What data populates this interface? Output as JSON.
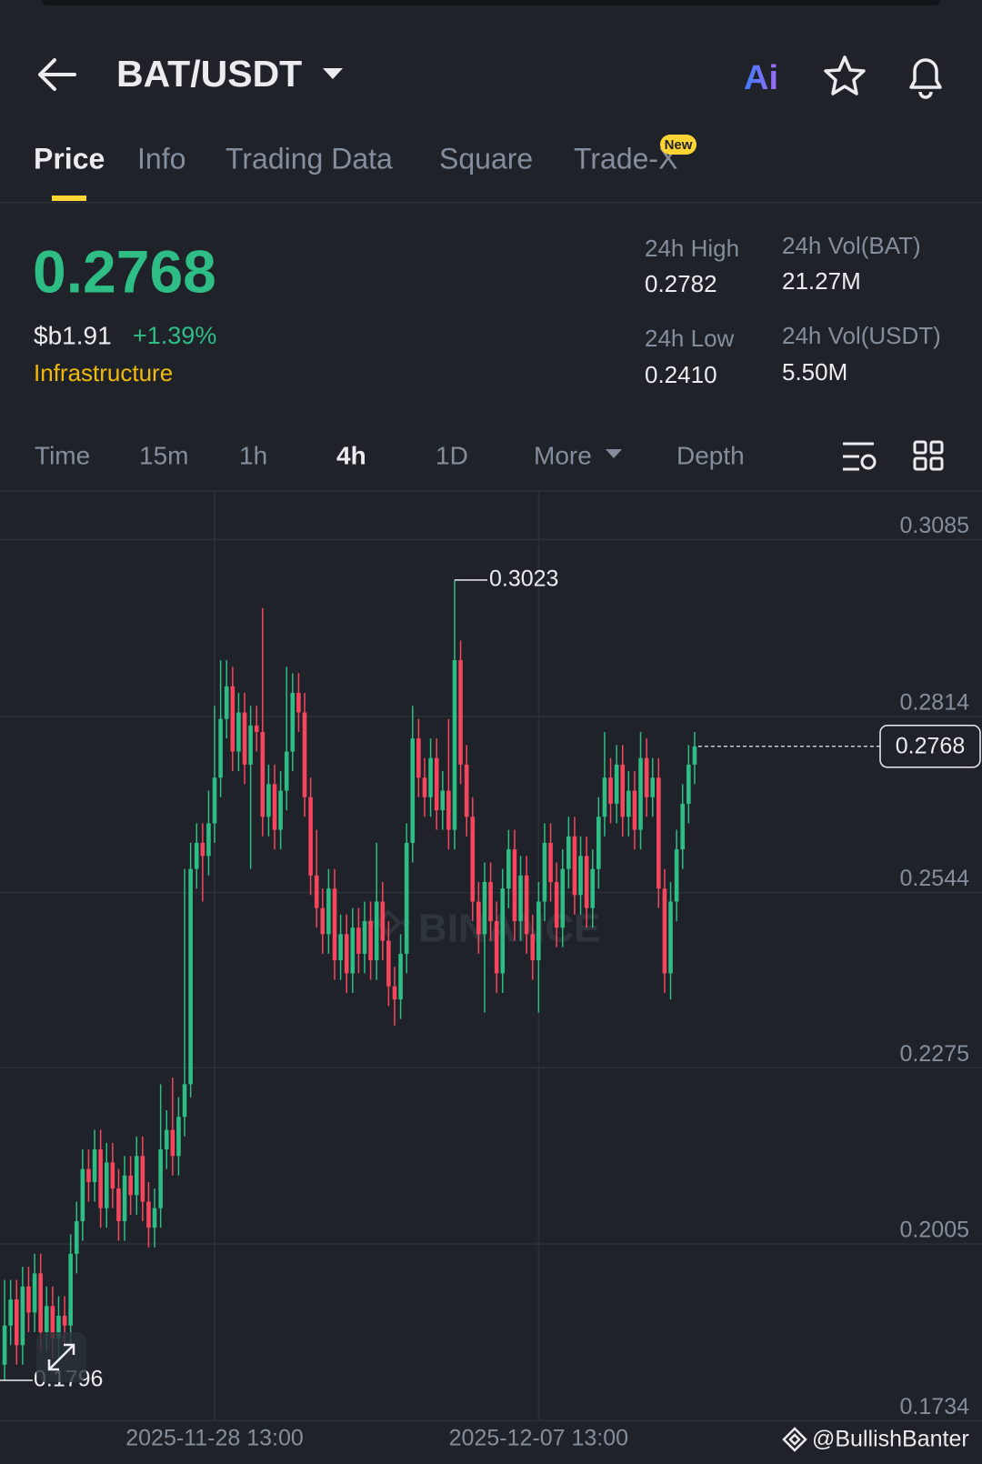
{
  "header": {
    "title": "BAT/USDT",
    "ai_label": "Ai"
  },
  "tabs": [
    "Price",
    "Info",
    "Trading Data",
    "Square",
    "Trade-X"
  ],
  "new_badge": "New",
  "ticker": {
    "price": "0.2768",
    "fiat": "$b1.91",
    "change": "+1.39%",
    "sector": "Infrastructure"
  },
  "stats": [
    {
      "label": "24h High",
      "value": "0.2782"
    },
    {
      "label": "24h Vol(BAT)",
      "value": "21.27M"
    },
    {
      "label": "24h Low",
      "value": "0.2410"
    },
    {
      "label": "24h Vol(USDT)",
      "value": "5.50M"
    }
  ],
  "intervals": [
    "Time",
    "15m",
    "1h",
    "4h",
    "1D",
    "More",
    "Depth"
  ],
  "watermark": "BINANCE",
  "credit": "@BullishBanter",
  "chart_data": {
    "type": "candlestick",
    "up_color": "#2ebd85",
    "down_color": "#f6465d",
    "ylim": [
      0.1734,
      0.3158
    ],
    "yticks": [
      0.3085,
      0.2814,
      0.2544,
      0.2275,
      0.2005,
      0.1734
    ],
    "xlim": [
      -0.77,
      162.9
    ],
    "xticks": [
      {
        "value": 35,
        "label": "2025-11-28 13:00"
      },
      {
        "value": 89,
        "label": "2025-12-07 13:00"
      }
    ],
    "high_label": 0.3023,
    "low_label": 0.1796,
    "last_price": 0.2768,
    "candles": [
      [
        0.182,
        0.195,
        0.1796,
        0.188
      ],
      [
        0.188,
        0.195,
        0.185,
        0.192
      ],
      [
        0.192,
        0.195,
        0.182,
        0.185
      ],
      [
        0.185,
        0.197,
        0.182,
        0.194
      ],
      [
        0.194,
        0.197,
        0.187,
        0.19
      ],
      [
        0.19,
        0.199,
        0.187,
        0.196
      ],
      [
        0.196,
        0.199,
        0.184,
        0.187
      ],
      [
        0.187,
        0.194,
        0.184,
        0.191
      ],
      [
        0.191,
        0.194,
        0.183,
        0.186
      ],
      [
        0.186,
        0.1925,
        0.183,
        0.1895
      ],
      [
        0.1895,
        0.1925,
        0.185,
        0.188
      ],
      [
        0.188,
        0.202,
        0.185,
        0.199
      ],
      [
        0.199,
        0.207,
        0.196,
        0.204
      ],
      [
        0.204,
        0.215,
        0.201,
        0.212
      ],
      [
        0.212,
        0.215,
        0.207,
        0.21
      ],
      [
        0.21,
        0.218,
        0.207,
        0.215
      ],
      [
        0.215,
        0.218,
        0.203,
        0.206
      ],
      [
        0.206,
        0.216,
        0.203,
        0.213
      ],
      [
        0.213,
        0.216,
        0.206,
        0.209
      ],
      [
        0.209,
        0.212,
        0.201,
        0.204
      ],
      [
        0.204,
        0.214,
        0.201,
        0.211
      ],
      [
        0.211,
        0.214,
        0.205,
        0.208
      ],
      [
        0.208,
        0.217,
        0.205,
        0.214
      ],
      [
        0.214,
        0.217,
        0.204,
        0.207
      ],
      [
        0.207,
        0.21,
        0.2,
        0.203
      ],
      [
        0.203,
        0.209,
        0.2,
        0.206
      ],
      [
        0.206,
        0.225,
        0.203,
        0.215
      ],
      [
        0.215,
        0.221,
        0.212,
        0.218
      ],
      [
        0.218,
        0.226,
        0.211,
        0.214
      ],
      [
        0.214,
        0.223,
        0.211,
        0.22
      ],
      [
        0.22,
        0.258,
        0.217,
        0.225
      ],
      [
        0.225,
        0.262,
        0.223,
        0.258
      ],
      [
        0.258,
        0.265,
        0.255,
        0.262
      ],
      [
        0.262,
        0.265,
        0.253,
        0.26
      ],
      [
        0.26,
        0.27,
        0.257,
        0.265
      ],
      [
        0.265,
        0.283,
        0.262,
        0.272
      ],
      [
        0.272,
        0.29,
        0.269,
        0.281
      ],
      [
        0.281,
        0.29,
        0.278,
        0.286
      ],
      [
        0.286,
        0.289,
        0.273,
        0.276
      ],
      [
        0.276,
        0.285,
        0.273,
        0.282
      ],
      [
        0.282,
        0.285,
        0.271,
        0.274
      ],
      [
        0.274,
        0.283,
        0.258,
        0.28
      ],
      [
        0.28,
        0.283,
        0.276,
        0.279
      ],
      [
        0.279,
        0.298,
        0.263,
        0.266
      ],
      [
        0.266,
        0.274,
        0.263,
        0.271
      ],
      [
        0.271,
        0.274,
        0.261,
        0.264
      ],
      [
        0.264,
        0.273,
        0.261,
        0.27
      ],
      [
        0.27,
        0.289,
        0.267,
        0.276
      ],
      [
        0.276,
        0.288,
        0.273,
        0.285
      ],
      [
        0.285,
        0.288,
        0.279,
        0.282
      ],
      [
        0.282,
        0.285,
        0.266,
        0.269
      ],
      [
        0.269,
        0.272,
        0.254,
        0.257
      ],
      [
        0.257,
        0.264,
        0.249,
        0.252
      ],
      [
        0.252,
        0.255,
        0.245,
        0.248
      ],
      [
        0.248,
        0.258,
        0.245,
        0.255
      ],
      [
        0.255,
        0.258,
        0.241,
        0.244
      ],
      [
        0.244,
        0.251,
        0.241,
        0.248
      ],
      [
        0.248,
        0.251,
        0.239,
        0.242
      ],
      [
        0.242,
        0.252,
        0.239,
        0.249
      ],
      [
        0.249,
        0.252,
        0.242,
        0.245
      ],
      [
        0.245,
        0.253,
        0.242,
        0.25
      ],
      [
        0.25,
        0.253,
        0.241,
        0.244
      ],
      [
        0.244,
        0.262,
        0.241,
        0.253
      ],
      [
        0.253,
        0.256,
        0.244,
        0.247
      ],
      [
        0.247,
        0.25,
        0.237,
        0.24
      ],
      [
        0.24,
        0.243,
        0.234,
        0.238
      ],
      [
        0.238,
        0.248,
        0.235,
        0.245
      ],
      [
        0.245,
        0.265,
        0.242,
        0.262
      ],
      [
        0.262,
        0.283,
        0.259,
        0.278
      ],
      [
        0.278,
        0.281,
        0.269,
        0.272
      ],
      [
        0.272,
        0.275,
        0.266,
        0.269
      ],
      [
        0.269,
        0.278,
        0.266,
        0.275
      ],
      [
        0.275,
        0.278,
        0.264,
        0.267
      ],
      [
        0.267,
        0.273,
        0.264,
        0.27
      ],
      [
        0.27,
        0.281,
        0.261,
        0.264
      ],
      [
        0.264,
        0.3023,
        0.261,
        0.29
      ],
      [
        0.29,
        0.293,
        0.271,
        0.274
      ],
      [
        0.274,
        0.277,
        0.263,
        0.266
      ],
      [
        0.266,
        0.269,
        0.25,
        0.253
      ],
      [
        0.253,
        0.256,
        0.245,
        0.248
      ],
      [
        0.248,
        0.259,
        0.236,
        0.256
      ],
      [
        0.256,
        0.259,
        0.247,
        0.25
      ],
      [
        0.25,
        0.253,
        0.239,
        0.242
      ],
      [
        0.242,
        0.258,
        0.239,
        0.255
      ],
      [
        0.255,
        0.264,
        0.252,
        0.261
      ],
      [
        0.261,
        0.264,
        0.247,
        0.25
      ],
      [
        0.25,
        0.26,
        0.247,
        0.257
      ],
      [
        0.257,
        0.26,
        0.245,
        0.248
      ],
      [
        0.248,
        0.251,
        0.241,
        0.244
      ],
      [
        0.244,
        0.256,
        0.236,
        0.253
      ],
      [
        0.253,
        0.265,
        0.25,
        0.262
      ],
      [
        0.262,
        0.265,
        0.253,
        0.256
      ],
      [
        0.256,
        0.259,
        0.246,
        0.249
      ],
      [
        0.249,
        0.261,
        0.246,
        0.258
      ],
      [
        0.258,
        0.266,
        0.255,
        0.263
      ],
      [
        0.263,
        0.266,
        0.251,
        0.254
      ],
      [
        0.254,
        0.263,
        0.251,
        0.26
      ],
      [
        0.26,
        0.263,
        0.249,
        0.252
      ],
      [
        0.252,
        0.261,
        0.249,
        0.258
      ],
      [
        0.258,
        0.269,
        0.255,
        0.266
      ],
      [
        0.266,
        0.279,
        0.263,
        0.272
      ],
      [
        0.272,
        0.275,
        0.265,
        0.268
      ],
      [
        0.268,
        0.277,
        0.265,
        0.274
      ],
      [
        0.274,
        0.277,
        0.263,
        0.266
      ],
      [
        0.266,
        0.273,
        0.263,
        0.27
      ],
      [
        0.27,
        0.273,
        0.261,
        0.264
      ],
      [
        0.264,
        0.279,
        0.261,
        0.275
      ],
      [
        0.275,
        0.278,
        0.266,
        0.269
      ],
      [
        0.269,
        0.275,
        0.266,
        0.272
      ],
      [
        0.272,
        0.275,
        0.252,
        0.255
      ],
      [
        0.255,
        0.258,
        0.239,
        0.242
      ],
      [
        0.242,
        0.256,
        0.238,
        0.253
      ],
      [
        0.253,
        0.264,
        0.25,
        0.261
      ],
      [
        0.261,
        0.271,
        0.258,
        0.268
      ],
      [
        0.268,
        0.277,
        0.265,
        0.274
      ],
      [
        0.274,
        0.279,
        0.271,
        0.2768
      ]
    ]
  }
}
